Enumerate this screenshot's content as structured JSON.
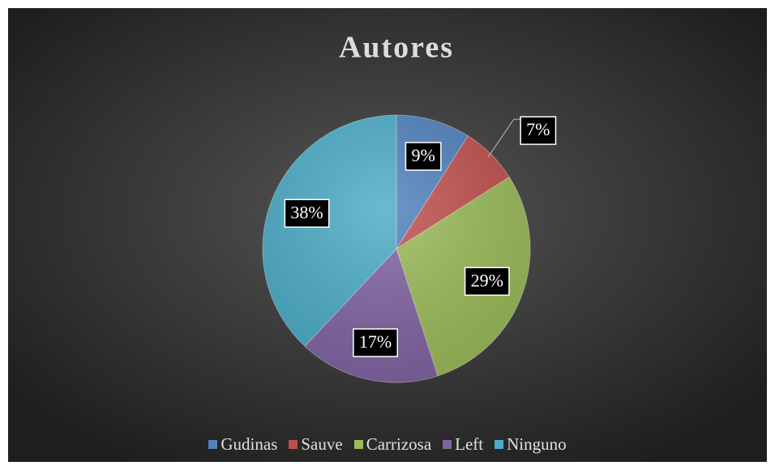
{
  "chart_data": {
    "type": "pie",
    "title": "Autores",
    "categories": [
      "Gudinas",
      "Sauve",
      "Carrizosa",
      "Left",
      "Ninguno"
    ],
    "values": [
      9,
      7,
      29,
      17,
      38
    ],
    "value_labels": [
      "9%",
      "7%",
      "29%",
      "17%",
      "38%"
    ],
    "colors": [
      "#4f81bd",
      "#c0504d",
      "#9bbb59",
      "#8064a2",
      "#4bacc6"
    ],
    "legend": "bottom"
  }
}
